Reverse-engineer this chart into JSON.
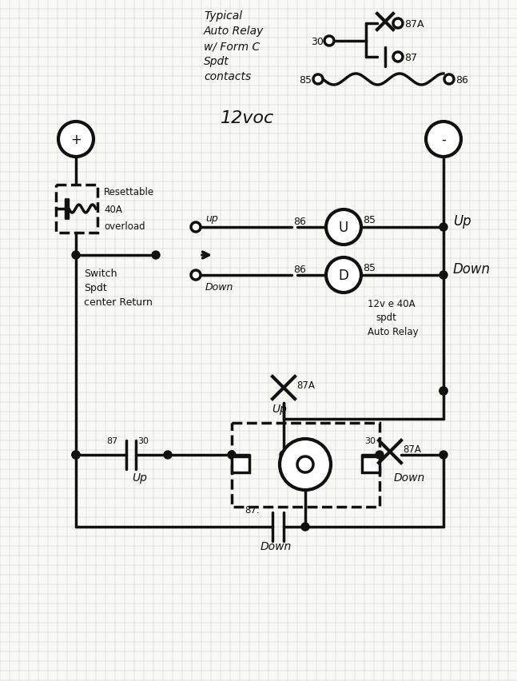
{
  "bg_color": "#f9f9f5",
  "grid_color": "#c8c8d4",
  "line_color": "#111111",
  "lw": 2.5,
  "relay_lines": [
    "Typical",
    "Auto Relay",
    "w/ Form C",
    "Spdt",
    "contacts"
  ]
}
